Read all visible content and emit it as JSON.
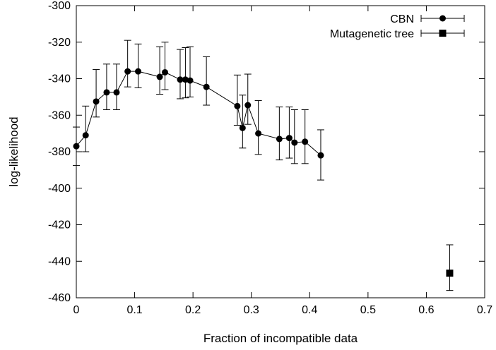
{
  "chart_data": {
    "type": "line",
    "title": "",
    "xlabel": "Fraction of incompatible data",
    "ylabel": "log-likelihood",
    "xlim": [
      0,
      0.7
    ],
    "ylim": [
      -460,
      -300
    ],
    "xticks": [
      0,
      0.1,
      0.2,
      0.3,
      0.4,
      0.5,
      0.6,
      0.7
    ],
    "xtick_labels": [
      "0",
      "0.1",
      "0.2",
      "0.3",
      "0.4",
      "0.5",
      "0.6",
      "0.7"
    ],
    "yticks": [
      -460,
      -440,
      -420,
      -400,
      -380,
      -360,
      -340,
      -320,
      -300
    ],
    "ytick_labels": [
      "-460",
      "-440",
      "-420",
      "-400",
      "-380",
      "-360",
      "-340",
      "-320",
      "-300"
    ],
    "grid": false,
    "legend_position": "top-right",
    "series": [
      {
        "name": "CBN",
        "marker": "circle",
        "connected": true,
        "points": [
          {
            "x": 0.0,
            "y": -377.0,
            "lo": -387.5,
            "hi": -366.5
          },
          {
            "x": 0.016,
            "y": -371.0,
            "lo": -380.0,
            "hi": -355.0
          },
          {
            "x": 0.034,
            "y": -352.5,
            "lo": -361.0,
            "hi": -335.0
          },
          {
            "x": 0.052,
            "y": -347.5,
            "lo": -357.0,
            "hi": -332.0
          },
          {
            "x": 0.069,
            "y": -347.5,
            "lo": -357.0,
            "hi": -332.0
          },
          {
            "x": 0.088,
            "y": -336.0,
            "lo": -344.5,
            "hi": -319.0
          },
          {
            "x": 0.106,
            "y": -336.0,
            "lo": -345.0,
            "hi": -321.0
          },
          {
            "x": 0.143,
            "y": -339.0,
            "lo": -348.5,
            "hi": -322.5
          },
          {
            "x": 0.152,
            "y": -336.5,
            "lo": -346.0,
            "hi": -320.0
          },
          {
            "x": 0.178,
            "y": -340.5,
            "lo": -351.0,
            "hi": -324.0
          },
          {
            "x": 0.187,
            "y": -340.5,
            "lo": -350.5,
            "hi": -323.0
          },
          {
            "x": 0.195,
            "y": -341.0,
            "lo": -350.0,
            "hi": -322.5
          },
          {
            "x": 0.223,
            "y": -344.5,
            "lo": -354.5,
            "hi": -328.0
          },
          {
            "x": 0.276,
            "y": -355.0,
            "lo": -365.5,
            "hi": -338.0
          },
          {
            "x": 0.285,
            "y": -367.0,
            "lo": -378.0,
            "hi": -349.0
          },
          {
            "x": 0.294,
            "y": -354.5,
            "lo": -365.0,
            "hi": -337.5
          },
          {
            "x": 0.312,
            "y": -370.0,
            "lo": -381.5,
            "hi": -352.0
          },
          {
            "x": 0.348,
            "y": -373.0,
            "lo": -384.5,
            "hi": -355.5
          },
          {
            "x": 0.365,
            "y": -372.5,
            "lo": -383.5,
            "hi": -355.5
          },
          {
            "x": 0.374,
            "y": -375.0,
            "lo": -386.5,
            "hi": -357.0
          },
          {
            "x": 0.392,
            "y": -374.5,
            "lo": -386.5,
            "hi": -357.0
          },
          {
            "x": 0.419,
            "y": -382.0,
            "lo": -395.5,
            "hi": -368.0
          }
        ]
      },
      {
        "name": "Mutagenetic tree",
        "marker": "square",
        "connected": false,
        "points": [
          {
            "x": 0.64,
            "y": -446.5,
            "lo": -456.0,
            "hi": -431.0
          }
        ]
      }
    ]
  }
}
